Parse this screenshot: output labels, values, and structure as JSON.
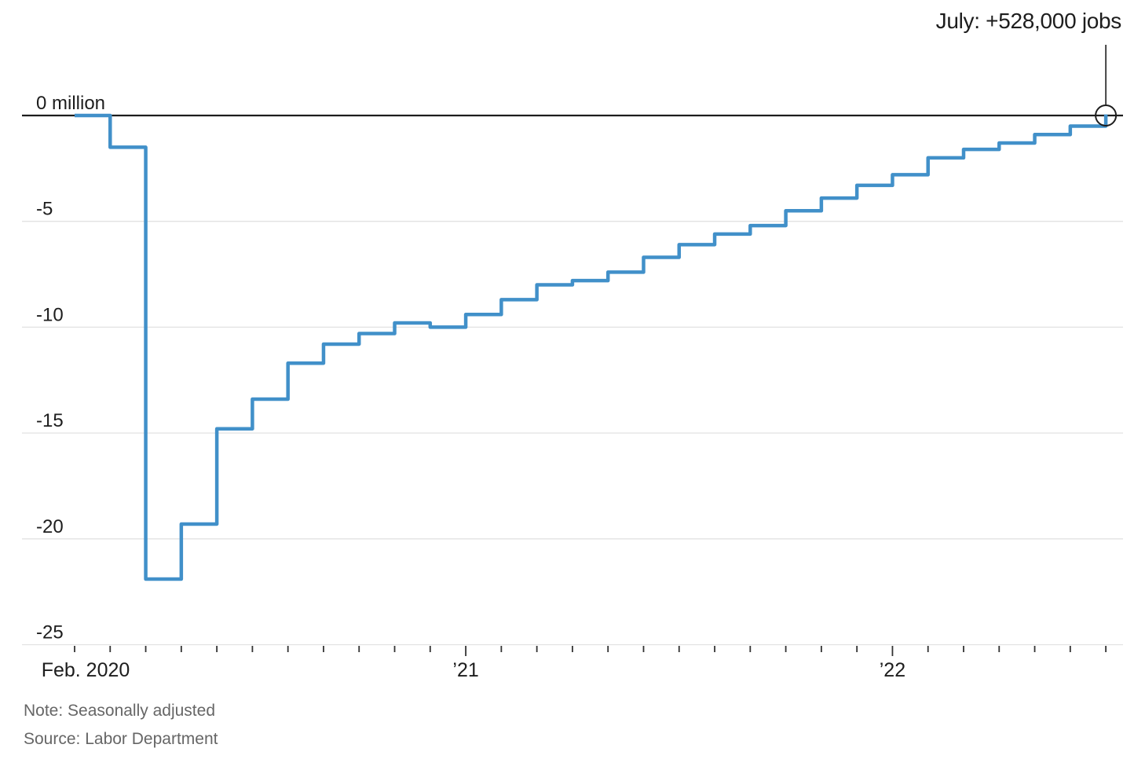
{
  "chart_data": {
    "type": "line",
    "subtype": "step-after",
    "title": "",
    "unit_label": "million",
    "annotation": {
      "label": "July: +528,000 jobs",
      "month_index": 29
    },
    "note": "Note: Seasonally adjusted",
    "source": "Source: Labor Department",
    "x": [
      "Feb. 2020",
      "March 2020",
      "April 2020",
      "May 2020",
      "June 2020",
      "July 2020",
      "Aug. 2020",
      "Sept. 2020",
      "Oct. 2020",
      "Nov. 2020",
      "Dec. 2020",
      "Jan. 2021",
      "Feb. 2021",
      "March 2021",
      "April 2021",
      "May 2021",
      "June 2021",
      "July 2021",
      "Aug. 2021",
      "Sept. 2021",
      "Oct. 2021",
      "Nov. 2021",
      "Dec. 2021",
      "Jan. 2022",
      "Feb. 2022",
      "March 2022",
      "April 2022",
      "May 2022",
      "June 2022",
      "July 2022"
    ],
    "values": [
      0,
      -1.5,
      -21.9,
      -19.3,
      -14.8,
      -13.4,
      -11.7,
      -10.8,
      -10.3,
      -9.8,
      -10.0,
      -9.4,
      -8.7,
      -8.0,
      -7.8,
      -7.4,
      -6.7,
      -6.1,
      -5.6,
      -5.2,
      -4.5,
      -3.9,
      -3.3,
      -2.8,
      -2.0,
      -1.6,
      -1.3,
      -0.9,
      -0.5,
      0.05
    ],
    "ylim": [
      -25,
      0.8
    ],
    "yticks": [
      {
        "value": 0,
        "label": "0 million"
      },
      {
        "value": -5,
        "label": "-5"
      },
      {
        "value": -10,
        "label": "-10"
      },
      {
        "value": -15,
        "label": "-15"
      },
      {
        "value": -20,
        "label": "-20"
      },
      {
        "value": -25,
        "label": "-25"
      }
    ],
    "xticks_labeled": [
      {
        "index": 0,
        "label": "Feb. 2020"
      },
      {
        "index": 11,
        "label": "’21"
      },
      {
        "index": 23,
        "label": "’22"
      }
    ],
    "grid": true,
    "legend": "none",
    "line_color": "#4190c9",
    "axis_color": "#1d1d1d",
    "grid_color": "#e2e2e2",
    "text_color": "#1d1d1d",
    "muted_text_color": "#666666"
  }
}
